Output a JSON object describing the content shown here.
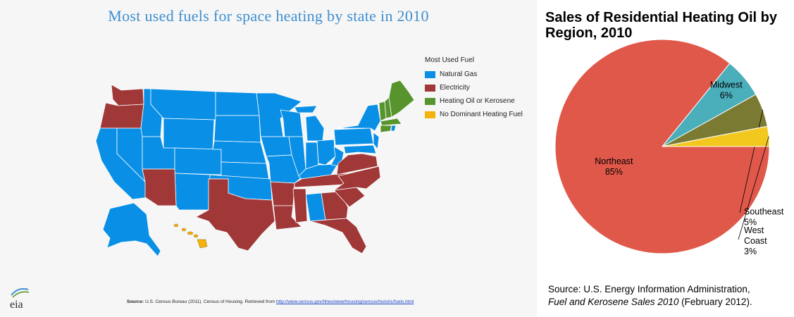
{
  "map": {
    "title": "Most used fuels for space heating by state in 2010",
    "legend_title": "Most Used Fuel",
    "legend": [
      {
        "key": "natural_gas",
        "label": "Natural Gas",
        "color": "#0a8fe6"
      },
      {
        "key": "electricity",
        "label": "Electricity",
        "color": "#a03838"
      },
      {
        "key": "heating_oil",
        "label": "Heating Oil or Kerosene",
        "color": "#58942e"
      },
      {
        "key": "none",
        "label": "No Dominant Heating Fuel",
        "color": "#f5b10c"
      }
    ],
    "source_label": "Source:",
    "source_text": "U.S. Census Bureau (2011).  Census of Housing. Retrieved from",
    "source_link": "http://www.census.gov/hhes/www/housing/census/historic/fuels.html",
    "logo_text": "eia"
  },
  "chart_data": [
    {
      "type": "pie",
      "title": "Sales of Residential Heating Oil by Region, 2010",
      "slices": [
        {
          "name": "Northeast",
          "value": 85,
          "label": "85%",
          "color": "#e0584a"
        },
        {
          "name": "Midwest",
          "value": 6,
          "label": "6%",
          "color": "#4aaebb"
        },
        {
          "name": "Southeast",
          "value": 5,
          "label": "5%",
          "color": "#7a7a32"
        },
        {
          "name": "West Coast",
          "value": 3,
          "label": "3%",
          "color": "#f2c81f"
        }
      ],
      "source_line1": "Source: U.S. Energy Information Administration,",
      "source_italic": "Fuel and Kerosene Sales 2010",
      "source_line2_rest": " (February 2012)."
    }
  ]
}
